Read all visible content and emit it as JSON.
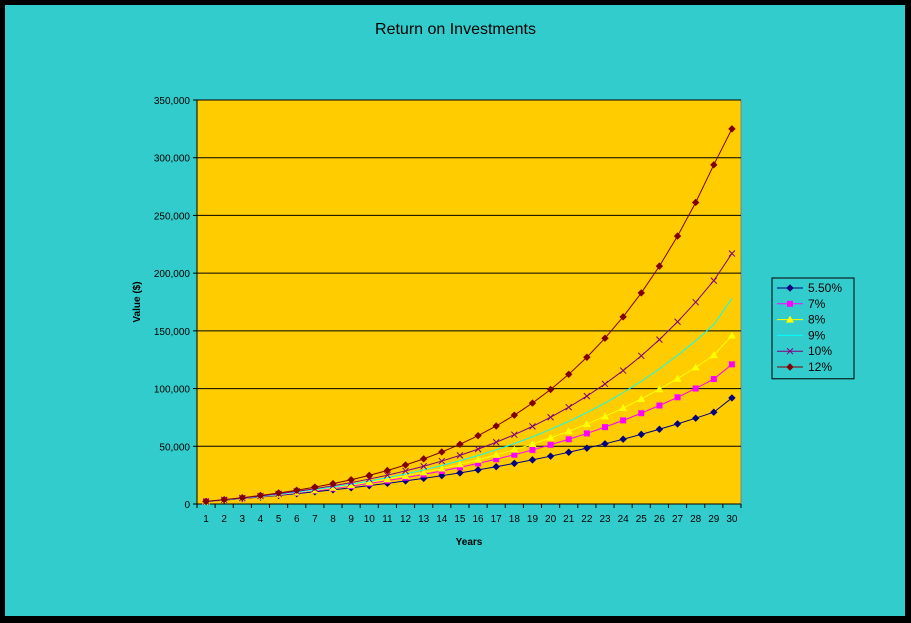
{
  "chart_data": {
    "type": "line",
    "title": "Return on Investments",
    "xlabel": "Years",
    "ylabel": "Value ($)",
    "ylim": [
      0,
      350000
    ],
    "yticks": [
      0,
      50000,
      100000,
      150000,
      200000,
      250000,
      300000,
      350000
    ],
    "ytick_labels": [
      "0",
      "50,000",
      "100,000",
      "150,000",
      "200,000",
      "250,000",
      "300,000",
      "350,000"
    ],
    "x": [
      1,
      2,
      3,
      4,
      5,
      6,
      7,
      8,
      9,
      10,
      11,
      12,
      13,
      14,
      15,
      16,
      17,
      18,
      19,
      20,
      21,
      22,
      23,
      24,
      25,
      26,
      27,
      28,
      29,
      30
    ],
    "legend_position": "right",
    "grid": "horizontal",
    "colors": {
      "frame": "#33CCCC",
      "plot_bg": "#FFCC00",
      "outer_bg": "#000000"
    },
    "series": [
      {
        "name": "5.50%",
        "color": "#000080",
        "marker": "diamond",
        "values": [
          2110,
          3340,
          4640,
          6010,
          7450,
          8970,
          10580,
          12270,
          14050,
          15930,
          17910,
          20000,
          22200,
          24530,
          26980,
          29570,
          32300,
          35180,
          38220,
          41430,
          44810,
          48380,
          52150,
          56130,
          60320,
          64740,
          69410,
          74330,
          79520,
          91900
        ]
      },
      {
        "name": "7%",
        "color": "#FF00FF",
        "marker": "square",
        "values": [
          2140,
          3440,
          4840,
          6340,
          7950,
          9660,
          11500,
          13470,
          15580,
          17840,
          20260,
          22850,
          25620,
          28590,
          31760,
          35160,
          38800,
          42690,
          46850,
          51300,
          56060,
          61150,
          66600,
          72430,
          78660,
          85320,
          92450,
          100080,
          108250,
          121000
        ]
      },
      {
        "name": "8%",
        "color": "#FFFF00",
        "marker": "triangle",
        "values": [
          2160,
          3490,
          4930,
          6490,
          8170,
          9980,
          11940,
          14050,
          16330,
          18790,
          21450,
          24320,
          27420,
          30770,
          34390,
          38300,
          42520,
          47070,
          51990,
          57310,
          63050,
          69250,
          75950,
          83180,
          90990,
          99420,
          108530,
          118370,
          128990,
          146000
        ]
      },
      {
        "name": "9%",
        "color": "#00FFFF",
        "marker": "none",
        "values": [
          2180,
          3530,
          5010,
          6630,
          8390,
          10310,
          12400,
          14680,
          17160,
          19860,
          22800,
          26010,
          29510,
          33320,
          37480,
          42010,
          46950,
          52330,
          58200,
          64600,
          71570,
          79170,
          87460,
          96490,
          106330,
          117050,
          128740,
          141480,
          155370,
          178000
        ]
      },
      {
        "name": "10%",
        "color": "#800080",
        "marker": "x",
        "values": [
          2200,
          3640,
          5220,
          6950,
          8850,
          10940,
          13240,
          15770,
          18550,
          21600,
          24960,
          28660,
          32730,
          37200,
          42120,
          47530,
          53490,
          60040,
          67240,
          75160,
          83880,
          93470,
          104010,
          115610,
          128380,
          142420,
          157860,
          174850,
          193530,
          217000
        ]
      },
      {
        "name": "12%",
        "color": "#800000",
        "marker": "diamond",
        "values": [
          2240,
          3760,
          5470,
          7390,
          9540,
          11940,
          14630,
          17650,
          21030,
          24810,
          29050,
          33800,
          39120,
          45070,
          51740,
          59210,
          67580,
          76950,
          87440,
          99200,
          112360,
          127120,
          143640,
          162150,
          182870,
          206090,
          232100,
          261230,
          293850,
          325000
        ]
      }
    ]
  }
}
